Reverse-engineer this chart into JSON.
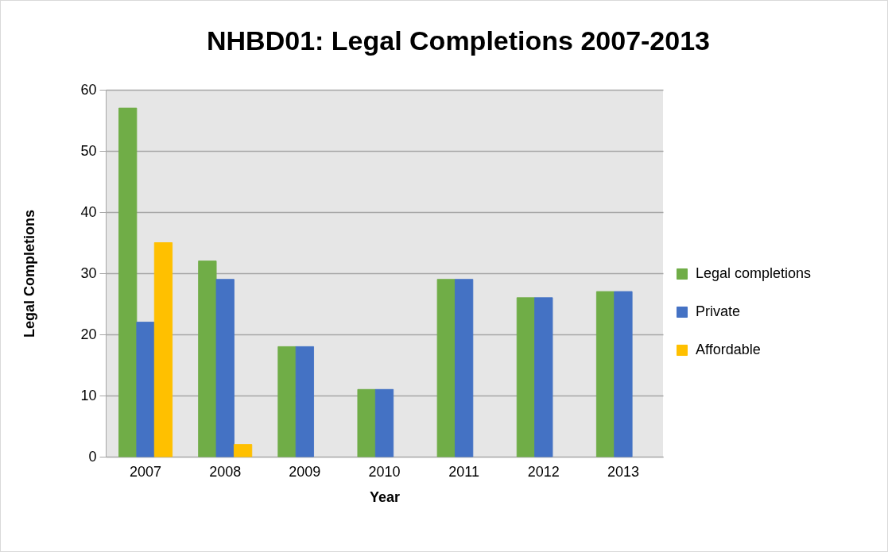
{
  "chart_data": {
    "type": "bar",
    "title": "NHBD01: Legal Completions 2007-2013",
    "xlabel": "Year",
    "ylabel": "Legal Completions",
    "categories": [
      "2007",
      "2008",
      "2009",
      "2010",
      "2011",
      "2012",
      "2013"
    ],
    "series": [
      {
        "name": "Legal completions",
        "color": "#70ad47",
        "values": [
          57,
          32,
          18,
          11,
          29,
          26,
          27
        ]
      },
      {
        "name": "Private",
        "color": "#4472c4",
        "values": [
          22,
          29,
          18,
          11,
          29,
          26,
          27
        ]
      },
      {
        "name": "Affordable",
        "color": "#ffc000",
        "values": [
          35,
          2,
          null,
          null,
          null,
          null,
          null
        ]
      }
    ],
    "ylim": [
      0,
      60
    ],
    "yticks": [
      0,
      10,
      20,
      30,
      40,
      50,
      60
    ],
    "grid": "y",
    "legend": "right"
  }
}
